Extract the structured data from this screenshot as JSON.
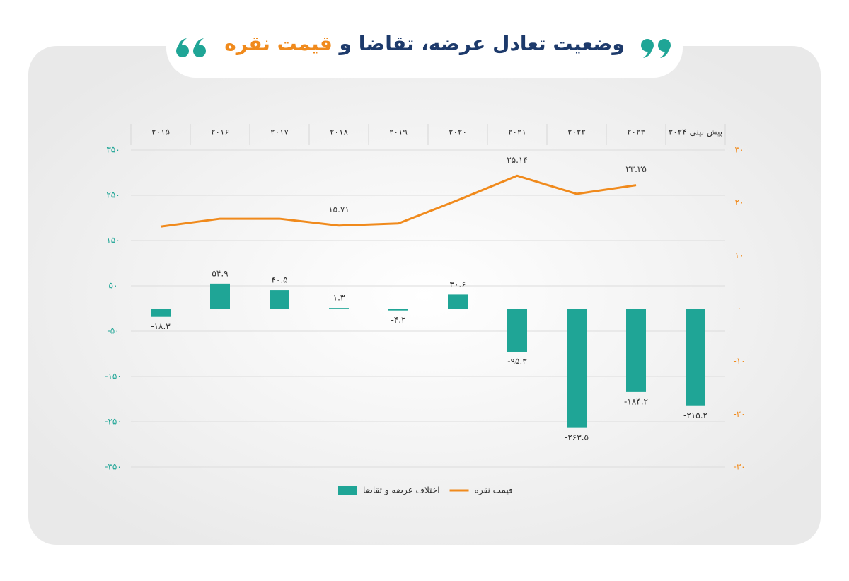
{
  "header": {
    "title": "وضعیت تعادل عرضه، تقاضا و",
    "title_highlight": "قیمت نقره"
  },
  "chart_data": {
    "type": "combo",
    "categories": [
      "۲۰۱۵",
      "۲۰۱۶",
      "۲۰۱۷",
      "۲۰۱۸",
      "۲۰۱۹",
      "۲۰۲۰",
      "۲۰۲۱",
      "۲۰۲۲",
      "۲۰۲۳",
      "پیش بینی ۲۰۲۴"
    ],
    "series": [
      {
        "name": "اختلاف عرضه و تقاضا",
        "type": "bar",
        "color": "#1fa596",
        "values": [
          -18.3,
          54.9,
          40.5,
          1.3,
          -4.2,
          30.6,
          -95.3,
          -263.5,
          -184.2,
          -215.2
        ],
        "value_labels": [
          "-۱۸.۳",
          "۵۴.۹",
          "۴۰.۵",
          "۱.۳",
          "-۴.۲",
          "۳۰.۶",
          "-۹۵.۳",
          "-۲۶۳.۵",
          "-۱۸۴.۲",
          "-۲۱۵.۲"
        ]
      },
      {
        "name": "قیمت نقره",
        "type": "line",
        "color": "#f08a1c",
        "axis": "y2",
        "values": [
          15.5,
          17.0,
          17.0,
          15.71,
          16.1,
          20.5,
          25.14,
          21.7,
          23.35,
          null
        ],
        "value_labels": [
          null,
          null,
          null,
          "۱۵.۷۱",
          null,
          null,
          "۲۵.۱۴",
          null,
          "۲۳.۳۵",
          null
        ]
      }
    ],
    "ylim": [
      -350,
      350
    ],
    "yticks": [
      {
        "value": 350,
        "label": "۳۵۰"
      },
      {
        "value": 250,
        "label": "۲۵۰"
      },
      {
        "value": 150,
        "label": "۱۵۰"
      },
      {
        "value": 50,
        "label": "۵۰"
      },
      {
        "value": -50,
        "label": "-۵۰"
      },
      {
        "value": -150,
        "label": "-۱۵۰"
      },
      {
        "value": -250,
        "label": "-۲۵۰"
      },
      {
        "value": -350,
        "label": "-۳۵۰"
      }
    ],
    "y2lim": [
      -30,
      30
    ],
    "y2ticks": [
      {
        "value": 30,
        "label": "۳۰"
      },
      {
        "value": 20,
        "label": "۲۰"
      },
      {
        "value": 10,
        "label": "۱۰"
      },
      {
        "value": 0,
        "label": "۰"
      },
      {
        "value": -10,
        "label": "-۱۰"
      },
      {
        "value": -20,
        "label": "-۲۰"
      },
      {
        "value": -30,
        "label": "-۳۰"
      }
    ],
    "grid": true,
    "legend": "bottom"
  }
}
